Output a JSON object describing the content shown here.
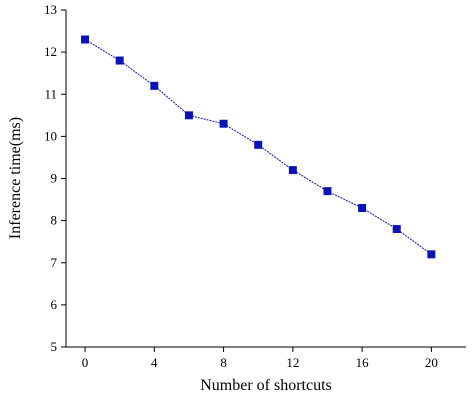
{
  "chart_data": {
    "type": "line",
    "x_label": "Number of shortcuts",
    "y_label": "Inference time(ms)",
    "x": [
      0,
      2,
      4,
      6,
      8,
      10,
      12,
      14,
      16,
      18,
      20
    ],
    "series": [
      {
        "color": "#0a14b4",
        "values": [
          12.3,
          11.8,
          11.2,
          10.5,
          10.3,
          9.8,
          9.2,
          8.7,
          8.3,
          7.8,
          7.2
        ]
      }
    ],
    "xlim": [
      -1.1,
      22
    ],
    "xticks": [
      0,
      4,
      8,
      12,
      16,
      20
    ],
    "ylim": [
      5,
      13
    ],
    "yticks": [
      5,
      6,
      7,
      8,
      9,
      10,
      11,
      12,
      13
    ]
  }
}
